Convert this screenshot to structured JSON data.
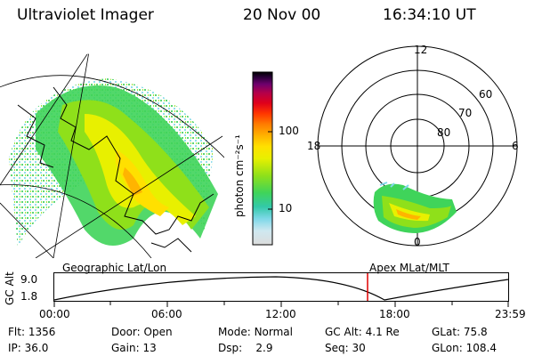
{
  "header": {
    "instrument": "Ultraviolet Imager",
    "date": "20 Nov 00",
    "time": "16:34:10 UT"
  },
  "colorbar": {
    "label": "photon cm⁻²s⁻¹",
    "ticks": [
      "100",
      "10"
    ],
    "colors": [
      "#dcdcdc",
      "#cfe8f0",
      "#7fd8e8",
      "#33c9a8",
      "#3fd45a",
      "#8fe01a",
      "#e8f000",
      "#ffe000",
      "#ffb400",
      "#ff7a00",
      "#ff3600",
      "#e0001a",
      "#b4004a",
      "#6e006e",
      "#2a0038",
      "#000000"
    ]
  },
  "polar_plot": {
    "mlt_labels": {
      "top": "12",
      "left": "18",
      "right": "6",
      "bottom": "0"
    },
    "lat_labels": [
      "60",
      "70",
      "80"
    ]
  },
  "timeline": {
    "left_label": "Geographic Lat/Lon",
    "right_label": "Apex MLat/MLT",
    "axis_title": "GC Alt",
    "y_ticks": [
      "9.0",
      "1.8"
    ],
    "x_ticks": [
      "00:00",
      "06:00",
      "12:00",
      "18:00",
      "23:59"
    ],
    "marker_time": "16:34",
    "marker_color": "#e00000"
  },
  "info": {
    "row1": [
      {
        "label": "Flt:",
        "value": "1356"
      },
      {
        "label": "Door:",
        "value": "Open"
      },
      {
        "label": "Mode:",
        "value": "Normal"
      },
      {
        "label": "GC Alt:",
        "value": "4.1 Re"
      },
      {
        "label": "GLat:",
        "value": "75.8"
      }
    ],
    "row2": [
      {
        "label": "IP:",
        "value": "36.0"
      },
      {
        "label": "Gain:",
        "value": "13"
      },
      {
        "label": "Dsp:",
        "value": "2.9"
      },
      {
        "label": "Seq:",
        "value": "30"
      },
      {
        "label": "GLon:",
        "value": "108.4"
      }
    ]
  }
}
